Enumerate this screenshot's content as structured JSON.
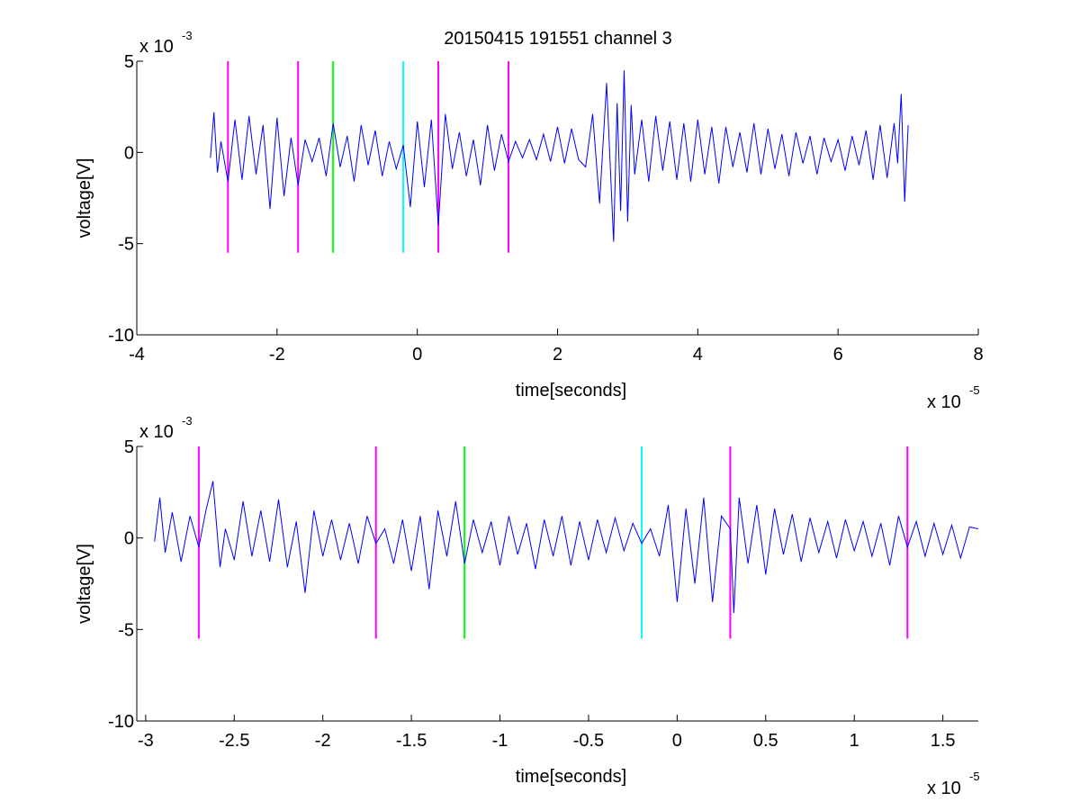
{
  "figure_title": "20150415 191551 channel 3",
  "colors": {
    "signal": "#0000ff",
    "magenta": "#ff00ff",
    "green": "#00ff00",
    "cyan": "#00ffff",
    "axes": "#000000"
  },
  "chart_data": [
    {
      "type": "line",
      "title": "20150415 191551 channel 3",
      "xlabel": "time[seconds]",
      "ylabel": "voltage[V]",
      "x_multiplier": "x 10",
      "x_exponent": "-5",
      "y_multiplier": "x 10",
      "y_exponent": "-3",
      "xlim": [
        -4,
        8
      ],
      "ylim": [
        -10,
        5
      ],
      "x_ticks": [
        -4,
        -2,
        0,
        2,
        4,
        6,
        8
      ],
      "x_tick_labels": [
        "-4",
        "-2",
        "0",
        "2",
        "4",
        "6",
        "8"
      ],
      "y_ticks": [
        -10,
        -5,
        0,
        5
      ],
      "y_tick_labels": [
        "-10",
        "-5",
        "0",
        "5"
      ],
      "grid": false,
      "series": [
        {
          "color": "#0000ff",
          "x": [
            -2.95,
            -2.9,
            -2.85,
            -2.8,
            -2.7,
            -2.6,
            -2.5,
            -2.4,
            -2.3,
            -2.2,
            -2.1,
            -2.0,
            -1.9,
            -1.8,
            -1.7,
            -1.6,
            -1.5,
            -1.4,
            -1.3,
            -1.2,
            -1.1,
            -1.0,
            -0.9,
            -0.8,
            -0.7,
            -0.6,
            -0.5,
            -0.4,
            -0.3,
            -0.2,
            -0.1,
            0.0,
            0.1,
            0.2,
            0.3,
            0.4,
            0.5,
            0.6,
            0.7,
            0.8,
            0.9,
            1.0,
            1.1,
            1.2,
            1.3,
            1.4,
            1.5,
            1.6,
            1.7,
            1.8,
            1.9,
            2.0,
            2.1,
            2.2,
            2.3,
            2.4,
            2.5,
            2.6,
            2.7,
            2.8,
            2.85,
            2.9,
            2.95,
            3.0,
            3.05,
            3.1,
            3.2,
            3.3,
            3.4,
            3.5,
            3.6,
            3.7,
            3.8,
            3.9,
            4.0,
            4.1,
            4.2,
            4.3,
            4.4,
            4.5,
            4.6,
            4.7,
            4.8,
            4.9,
            5.0,
            5.1,
            5.2,
            5.3,
            5.4,
            5.5,
            5.6,
            5.7,
            5.8,
            5.9,
            6.0,
            6.1,
            6.2,
            6.3,
            6.4,
            6.5,
            6.6,
            6.7,
            6.8,
            6.85,
            6.9,
            6.95,
            7.0
          ],
          "y": [
            -0.3,
            2.2,
            -1.1,
            0.6,
            -1.6,
            1.8,
            -1.5,
            2.0,
            -1.2,
            1.5,
            -3.1,
            1.9,
            -2.4,
            0.8,
            -1.8,
            0.7,
            -0.5,
            0.8,
            -1.3,
            1.6,
            -0.8,
            0.9,
            -1.6,
            1.5,
            -0.7,
            1.2,
            -1.3,
            0.6,
            -0.9,
            0.4,
            -3.0,
            1.7,
            -1.9,
            1.8,
            -4.0,
            2.1,
            -0.9,
            1.1,
            -1.3,
            0.7,
            -1.8,
            1.5,
            -1.0,
            1.0,
            -0.5,
            0.6,
            -0.3,
            0.7,
            -0.4,
            1.0,
            -0.5,
            1.4,
            -0.6,
            1.3,
            -0.4,
            -0.8,
            2.1,
            -2.8,
            3.8,
            -4.9,
            2.7,
            -3.2,
            4.5,
            -3.8,
            2.6,
            -1.2,
            1.8,
            -1.6,
            2.0,
            -1.0,
            1.7,
            -1.5,
            1.6,
            -1.6,
            1.8,
            -1.2,
            1.4,
            -1.7,
            1.4,
            -0.8,
            1.1,
            -1.1,
            1.6,
            -1.2,
            1.3,
            -0.9,
            1.0,
            -1.3,
            1.1,
            -0.6,
            0.9,
            -1.2,
            0.8,
            -0.5,
            0.7,
            -1.0,
            0.9,
            -0.7,
            1.2,
            -1.5,
            1.5,
            -1.4,
            1.6,
            -0.6,
            3.2,
            -2.7,
            1.5
          ]
        }
      ],
      "markers": [
        {
          "x": -2.7,
          "color": "#ff00ff",
          "y_range": [
            -5.5,
            5
          ]
        },
        {
          "x": -1.7,
          "color": "#ff00ff",
          "y_range": [
            -5.5,
            5
          ]
        },
        {
          "x": -1.2,
          "color": "#00ff00",
          "y_range": [
            -5.5,
            5
          ]
        },
        {
          "x": -0.2,
          "color": "#00ffff",
          "y_range": [
            -5.5,
            5
          ]
        },
        {
          "x": 0.3,
          "color": "#ff00ff",
          "y_range": [
            -5.5,
            5
          ]
        },
        {
          "x": 1.3,
          "color": "#ff00ff",
          "y_range": [
            -5.5,
            5
          ]
        }
      ]
    },
    {
      "type": "line",
      "title": "",
      "xlabel": "time[seconds]",
      "ylabel": "voltage[V]",
      "x_multiplier": "x 10",
      "x_exponent": "-5",
      "y_multiplier": "x 10",
      "y_exponent": "-3",
      "xlim": [
        -3.05,
        1.7
      ],
      "ylim": [
        -10,
        5
      ],
      "x_ticks": [
        -3,
        -2.5,
        -2,
        -1.5,
        -1,
        -0.5,
        0,
        0.5,
        1,
        1.5
      ],
      "x_tick_labels": [
        "-3",
        "-2.5",
        "-2",
        "-1.5",
        "-1",
        "-0.5",
        "0",
        "0.5",
        "1",
        "1.5"
      ],
      "y_ticks": [
        -10,
        -5,
        0,
        5
      ],
      "y_tick_labels": [
        "-10",
        "-5",
        "0",
        "5"
      ],
      "grid": false,
      "series": [
        {
          "color": "#0000ff",
          "x": [
            -2.95,
            -2.92,
            -2.89,
            -2.85,
            -2.8,
            -2.75,
            -2.7,
            -2.66,
            -2.62,
            -2.58,
            -2.55,
            -2.5,
            -2.45,
            -2.4,
            -2.35,
            -2.3,
            -2.25,
            -2.2,
            -2.15,
            -2.1,
            -2.05,
            -2.0,
            -1.95,
            -1.9,
            -1.85,
            -1.8,
            -1.75,
            -1.7,
            -1.65,
            -1.6,
            -1.55,
            -1.5,
            -1.45,
            -1.4,
            -1.35,
            -1.3,
            -1.25,
            -1.2,
            -1.15,
            -1.1,
            -1.05,
            -1.0,
            -0.95,
            -0.9,
            -0.85,
            -0.8,
            -0.75,
            -0.7,
            -0.65,
            -0.6,
            -0.55,
            -0.5,
            -0.45,
            -0.4,
            -0.35,
            -0.3,
            -0.25,
            -0.2,
            -0.15,
            -0.1,
            -0.05,
            0.0,
            0.05,
            0.1,
            0.15,
            0.2,
            0.25,
            0.3,
            0.32,
            0.35,
            0.4,
            0.45,
            0.5,
            0.55,
            0.6,
            0.65,
            0.7,
            0.75,
            0.8,
            0.85,
            0.9,
            0.95,
            1.0,
            1.05,
            1.1,
            1.15,
            1.2,
            1.25,
            1.3,
            1.35,
            1.4,
            1.45,
            1.5,
            1.55,
            1.6,
            1.65,
            1.7
          ],
          "y": [
            -0.2,
            2.2,
            -0.8,
            1.4,
            -1.3,
            1.2,
            -0.5,
            1.5,
            3.1,
            -1.6,
            0.5,
            -1.2,
            2.0,
            -1.0,
            1.5,
            -1.3,
            2.1,
            -1.6,
            0.9,
            -3.0,
            1.5,
            -1.0,
            1.0,
            -1.2,
            0.8,
            -1.4,
            1.2,
            -0.3,
            0.5,
            -1.4,
            1.0,
            -1.8,
            1.2,
            -2.8,
            1.5,
            -1.0,
            2.0,
            -1.4,
            1.0,
            -0.8,
            0.9,
            -1.5,
            1.2,
            -0.9,
            0.8,
            -1.7,
            1.0,
            -1.0,
            1.2,
            -1.5,
            0.9,
            -1.2,
            1.0,
            -0.8,
            1.1,
            -0.7,
            0.8,
            -0.3,
            0.5,
            -1.0,
            1.8,
            -3.5,
            1.6,
            -2.5,
            2.2,
            -3.5,
            1.2,
            0.5,
            -4.1,
            2.2,
            -1.4,
            1.8,
            -2.0,
            1.6,
            -0.9,
            1.3,
            -1.3,
            1.1,
            -0.8,
            0.9,
            -1.1,
            1.0,
            -0.7,
            0.9,
            -1.0,
            0.8,
            -1.5,
            1.2,
            -0.5,
            0.9,
            -1.0,
            0.8,
            -0.9,
            0.7,
            -1.1,
            0.6,
            0.5
          ]
        }
      ],
      "markers": [
        {
          "x": -2.7,
          "color": "#ff00ff",
          "y_range": [
            -5.5,
            5
          ]
        },
        {
          "x": -1.7,
          "color": "#ff00ff",
          "y_range": [
            -5.5,
            5
          ]
        },
        {
          "x": -1.2,
          "color": "#00ff00",
          "y_range": [
            -5.5,
            5
          ]
        },
        {
          "x": -0.2,
          "color": "#00ffff",
          "y_range": [
            -5.5,
            5
          ]
        },
        {
          "x": 0.3,
          "color": "#ff00ff",
          "y_range": [
            -5.5,
            5
          ]
        },
        {
          "x": 1.3,
          "color": "#ff00ff",
          "y_range": [
            -5.5,
            5
          ]
        }
      ]
    }
  ]
}
